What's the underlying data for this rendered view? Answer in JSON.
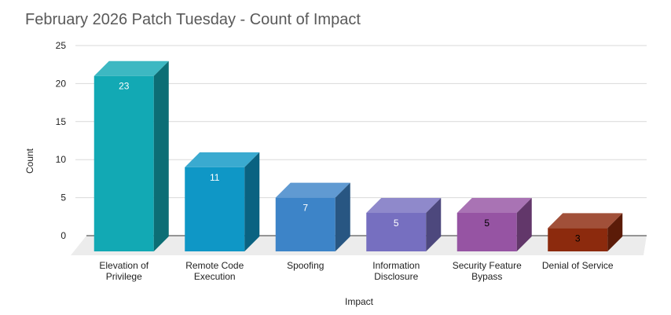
{
  "chart_data": {
    "type": "bar",
    "title": "February 2026 Patch Tuesday - Count of Impact",
    "xlabel": "Impact",
    "ylabel": "Count",
    "ylim": [
      0,
      25
    ],
    "yticks": [
      "0",
      "5",
      "10",
      "15",
      "20",
      "25"
    ],
    "grid": true,
    "three_d": true,
    "categories": [
      [
        "Elevation of",
        "Privilege"
      ],
      [
        "Remote Code",
        "Execution"
      ],
      [
        "Spoofing"
      ],
      [
        "Information",
        "Disclosure"
      ],
      [
        "Security Feature",
        "Bypass"
      ],
      [
        "Denial of Service"
      ]
    ],
    "values": [
      23,
      11,
      7,
      5,
      5,
      3
    ],
    "data_labels": [
      "23",
      "11",
      "7",
      "5",
      "5",
      "3"
    ],
    "colors": [
      "#12a9b4",
      "#0f97c6",
      "#3d84c8",
      "#766fc0",
      "#9654a3",
      "#8c2a0d"
    ],
    "label_colors": [
      "#ffffff",
      "#ffffff",
      "#ffffff",
      "#ffffff",
      "#000000",
      "#000000"
    ]
  }
}
